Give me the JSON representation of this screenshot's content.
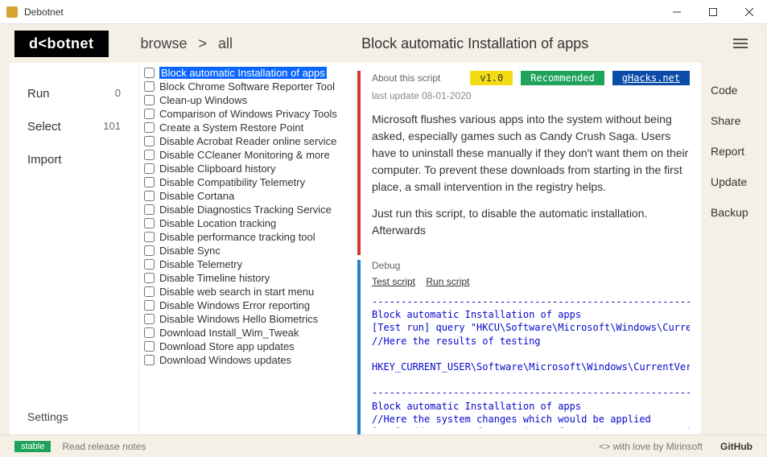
{
  "window": {
    "title": "Debotnet"
  },
  "header": {
    "logo": "d<botnet",
    "breadcrumb": [
      "browse",
      ">",
      "all"
    ],
    "page_title": "Block automatic Installation of apps"
  },
  "nav": {
    "items": [
      {
        "label": "Run",
        "count": "0"
      },
      {
        "label": "Select",
        "count": "101"
      },
      {
        "label": "Import",
        "count": ""
      }
    ],
    "settings": "Settings"
  },
  "scripts": [
    {
      "label": "Block automatic Installation of apps",
      "selected": true
    },
    {
      "label": "Block Chrome Software Reporter Tool"
    },
    {
      "label": "Clean-up Windows"
    },
    {
      "label": "Comparison of Windows Privacy Tools"
    },
    {
      "label": "Create a System Restore Point"
    },
    {
      "label": "Disable Acrobat Reader online service"
    },
    {
      "label": "Disable CCleaner Monitoring & more"
    },
    {
      "label": "Disable Clipboard history"
    },
    {
      "label": "Disable Compatibility Telemetry"
    },
    {
      "label": "Disable Cortana"
    },
    {
      "label": "Disable Diagnostics Tracking Service"
    },
    {
      "label": "Disable Location tracking"
    },
    {
      "label": "Disable performance tracking tool"
    },
    {
      "label": "Disable Sync"
    },
    {
      "label": "Disable Telemetry"
    },
    {
      "label": "Disable Timeline history"
    },
    {
      "label": "Disable web search in start menu"
    },
    {
      "label": "Disable Windows Error reporting"
    },
    {
      "label": "Disable Windows Hello Biometrics"
    },
    {
      "label": "Download Install_Wim_Tweak"
    },
    {
      "label": "Download Store app updates"
    },
    {
      "label": "Download Windows updates"
    }
  ],
  "about": {
    "label": "About this script",
    "version": "v1.0",
    "recommended": "Recommended",
    "source": "gHacks.net",
    "last_update": "last update 08-01-2020",
    "p1": "Microsoft flushes various apps into the system without being asked, especially games such as Candy Crush Saga. Users have to uninstall these manually if they don't want them on their computer. To prevent these downloads from starting in the first place, a small intervention in the registry helps.",
    "p2": "Just run this script, to disable the automatic installation. Afterwards",
    "accent_color": "#d0392c"
  },
  "debug": {
    "label": "Debug",
    "test_link": "Test script",
    "run_link": "Run script",
    "accent_color": "#2b7fd1",
    "console": "----------------------------------------------------------- SIMULATION\nBlock automatic Installation of apps\n[Test run] query \"HKCU\\Software\\Microsoft\\Windows\\CurrentVersion\n//Here the results of testing\n\nHKEY_CURRENT_USER\\Software\\Microsoft\\Windows\\CurrentVersion\\Cont\n\n----------------------------------------------------------------------\nBlock automatic Installation of apps\n//Here the system changes which would be applied\n[Reg] add \"HKCU\\Software\\Microsoft\\Windows\\CurrentVersion\\Conten",
    "console_hl": "----------------------------------------------------------------------"
  },
  "side_actions": [
    "Code",
    "Share",
    "Report",
    "Update",
    "Backup"
  ],
  "footer": {
    "stable": "stable",
    "notes": "Read release notes",
    "credit": "<>  with love by Mirinsoft",
    "github": "GitHub"
  },
  "colors": {
    "page_bg": "#f4f0e6",
    "selected_bg": "#0a66ff",
    "console_text": "#0707cc",
    "badge_ver_bg": "#f4dc15",
    "badge_rec_bg": "#1fa35a",
    "badge_gh_bg": "#0b4ca8"
  }
}
